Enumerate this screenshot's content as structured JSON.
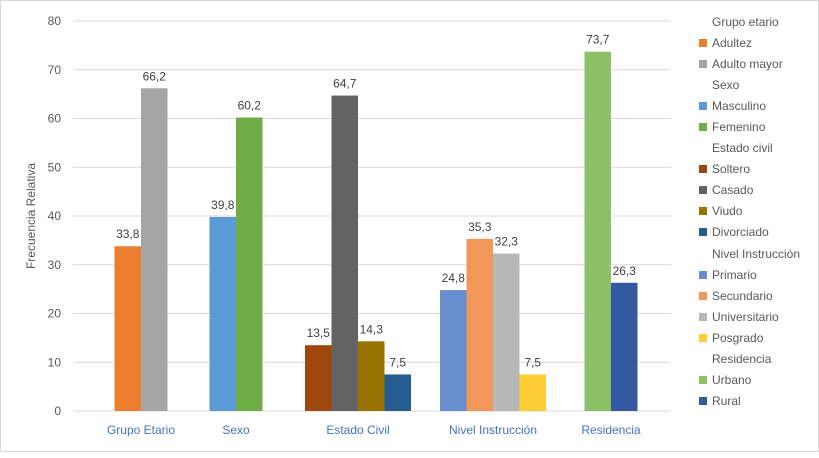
{
  "chart_data": {
    "type": "bar",
    "title": "",
    "xlabel": "",
    "ylabel": "Frecuencia Relativa",
    "ylim": [
      0,
      80
    ],
    "yticks": [
      0,
      10,
      20,
      30,
      40,
      50,
      60,
      70,
      80
    ],
    "grid": true,
    "legend_position": "right",
    "categories": [
      "Grupo Etario",
      "Sexo",
      "Estado Civil",
      "Nivel Instrucción",
      "Residencia"
    ],
    "groups": [
      {
        "name": "Grupo etario",
        "category": "Grupo Etario",
        "series": [
          {
            "name": "Adultez",
            "value": 33.8,
            "label": "33,8",
            "color": "#ED7D31"
          },
          {
            "name": "Adulto mayor",
            "value": 66.2,
            "label": "66,2",
            "color": "#A5A5A5"
          }
        ]
      },
      {
        "name": "Sexo",
        "category": "Sexo",
        "series": [
          {
            "name": "Masculino",
            "value": 39.8,
            "label": "39,8",
            "color": "#5B9BD5"
          },
          {
            "name": "Femenino",
            "value": 60.2,
            "label": "60,2",
            "color": "#70AD47"
          }
        ]
      },
      {
        "name": "Estado civil",
        "category": "Estado Civil",
        "series": [
          {
            "name": "Soltero",
            "value": 13.5,
            "label": "13,5",
            "color": "#9E480E"
          },
          {
            "name": "Casado",
            "value": 64.7,
            "label": "64,7",
            "color": "#636363"
          },
          {
            "name": "Viudo",
            "value": 14.3,
            "label": "14,3",
            "color": "#997300"
          },
          {
            "name": "Divorciado",
            "value": 7.5,
            "label": "7,5",
            "color": "#255E91"
          }
        ]
      },
      {
        "name": "Nivel Instrucción",
        "category": "Nivel Instrucción",
        "series": [
          {
            "name": "Primario",
            "value": 24.8,
            "label": "24,8",
            "color": "#698ED0"
          },
          {
            "name": "Secundario",
            "value": 35.3,
            "label": "35,3",
            "color": "#F1975A"
          },
          {
            "name": "Universitario",
            "value": 32.3,
            "label": "32,3",
            "color": "#B7B7B7"
          },
          {
            "name": "Posgrado",
            "value": 7.5,
            "label": "7,5",
            "color": "#FFCD33"
          }
        ]
      },
      {
        "name": "Residencia",
        "category": "Residencia",
        "series": [
          {
            "name": "Urbano",
            "value": 73.7,
            "label": "73,7",
            "color": "#8CC168"
          },
          {
            "name": "Rural",
            "value": 26.3,
            "label": "26,3",
            "color": "#335AA1"
          }
        ]
      }
    ]
  },
  "colors": {
    "axis_text": "#595959",
    "category_text": "#4472C4",
    "gridline": "#d9d9d9"
  }
}
